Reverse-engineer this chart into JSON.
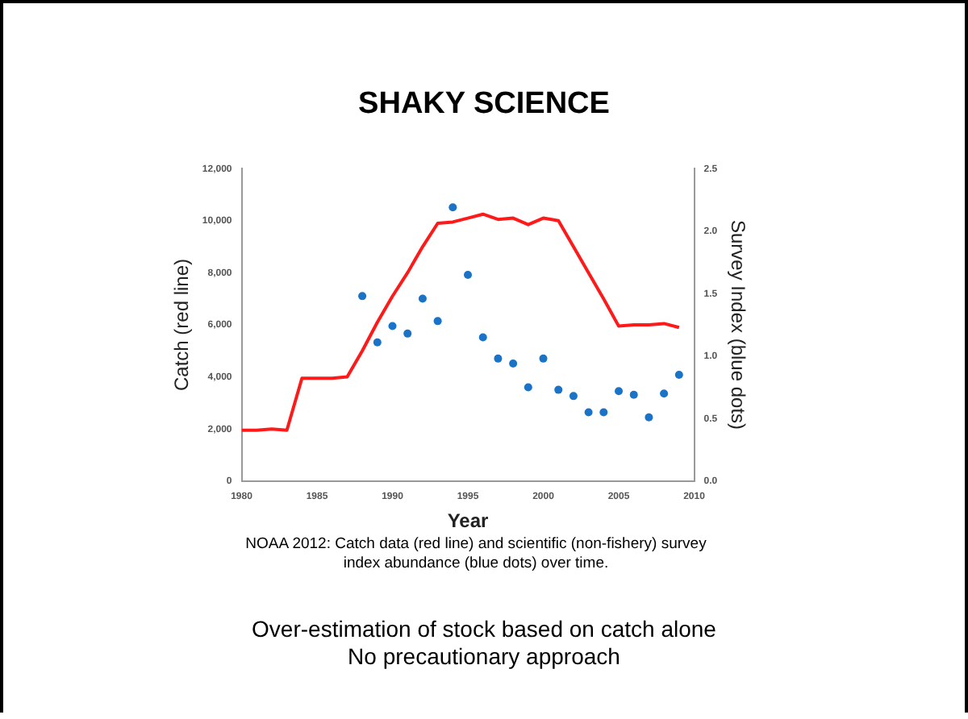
{
  "chart_data": {
    "type": "line",
    "title": "SHAKY SCIENCE",
    "xlabel": "Year",
    "ylabel": "Catch (red line)",
    "y2label": "Survey Index (blue dots)",
    "xlim": [
      1980,
      2010
    ],
    "xticks": [
      1980,
      1985,
      1990,
      1995,
      2000,
      2005,
      2010
    ],
    "ylim": [
      0,
      12000
    ],
    "yticks": [
      0,
      {
        "value": 2000,
        "label": "2,000"
      },
      {
        "value": 4000,
        "label": "4,000"
      },
      {
        "value": 6000,
        "label": "6,000"
      },
      {
        "value": 8000,
        "label": "8,000"
      },
      {
        "value": 10000,
        "label": "10,000"
      },
      {
        "value": 12000,
        "label": "12,000"
      }
    ],
    "y2lim": [
      0,
      2.5
    ],
    "y2ticks": [
      {
        "value": 0,
        "label": "0.0"
      },
      0.5,
      {
        "value": 1,
        "label": "1.0"
      },
      1.5,
      {
        "value": 2,
        "label": "2.0"
      },
      2.5
    ],
    "series": [
      {
        "color": "#ff1a1a",
        "marker": "none",
        "x": [
          1980,
          1981,
          1982,
          1983,
          1984,
          1985,
          1986,
          1987,
          1988,
          1989,
          1990,
          1991,
          1992,
          1993,
          1994,
          1995,
          1996,
          1997,
          1998,
          1999,
          2000,
          2001,
          2002,
          2003,
          2004,
          2005,
          2006,
          2007,
          2008,
          2009
        ],
        "values": [
          1950,
          1950,
          2000,
          1950,
          3950,
          3950,
          3950,
          4000,
          5000,
          6100,
          7100,
          8000,
          9000,
          9900,
          9950,
          10100,
          10250,
          10050,
          10100,
          9850,
          10100,
          10000,
          9000,
          8000,
          7000,
          5950,
          6000,
          6000,
          6050,
          5900
        ]
      },
      {
        "type": "scatter",
        "color": "#1a73c6",
        "marker": "circle",
        "axis": "y2",
        "x": [
          1988,
          1989,
          1990,
          1991,
          1992,
          1993,
          1994,
          1995,
          1996,
          1997,
          1998,
          1999,
          2000,
          2001,
          2002,
          2003,
          2004,
          2005,
          2006,
          2007,
          2008,
          2009
        ],
        "values": [
          1.48,
          1.11,
          1.24,
          1.18,
          1.46,
          1.28,
          2.19,
          1.65,
          1.15,
          0.98,
          0.94,
          0.75,
          0.98,
          0.73,
          0.68,
          0.55,
          0.55,
          0.72,
          0.69,
          0.51,
          0.7,
          0.85
        ]
      }
    ],
    "grid": false,
    "legend": false,
    "annotations": [
      "NOAA 2012:  Catch data (red line) and scientific (non-fishery) survey index abundance (blue dots) over time.",
      "Over-estimation of stock based on catch alone",
      "No precautionary approach"
    ]
  }
}
